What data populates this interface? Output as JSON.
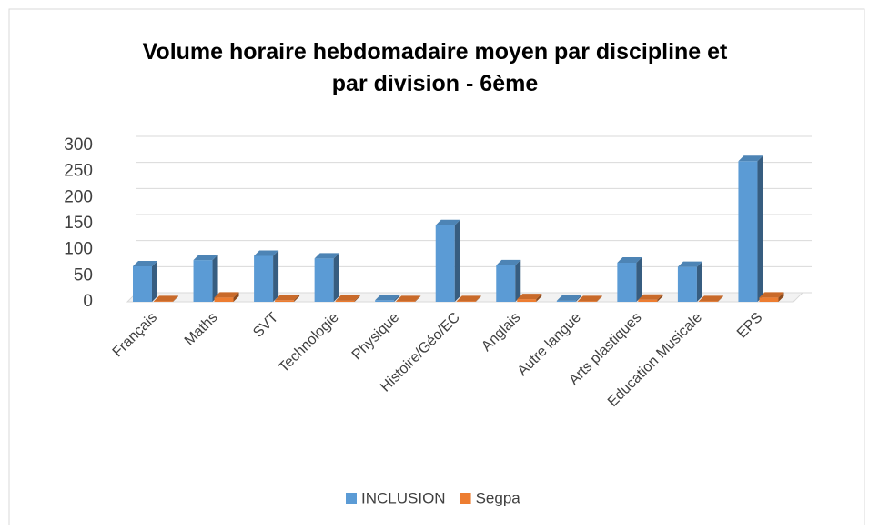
{
  "chart_data": {
    "type": "bar3d",
    "title": [
      "Volume horaire hebdomadaire moyen par discipline et",
      "par division - 6ème"
    ],
    "categories": [
      "Français",
      "Maths",
      "SVT",
      "Technologie",
      "Physique",
      "Histoire/Géo/EC",
      "Anglais",
      "Autre langue",
      "Arts plastiques",
      "Education Musicale",
      "EPS"
    ],
    "series": [
      {
        "name": "INCLUSION",
        "color": "#5b9bd5",
        "values": [
          68,
          80,
          88,
          83,
          3,
          147,
          70,
          2,
          75,
          67,
          270
        ]
      },
      {
        "name": "Segpa",
        "color": "#ed7d31",
        "values": [
          1,
          8,
          3,
          2,
          1,
          1,
          5,
          1,
          4,
          1,
          8
        ]
      }
    ],
    "ylim": [
      0,
      300
    ],
    "yticks": [
      0,
      50,
      100,
      150,
      200,
      250,
      300
    ],
    "grid": true,
    "legend": "bottom"
  }
}
